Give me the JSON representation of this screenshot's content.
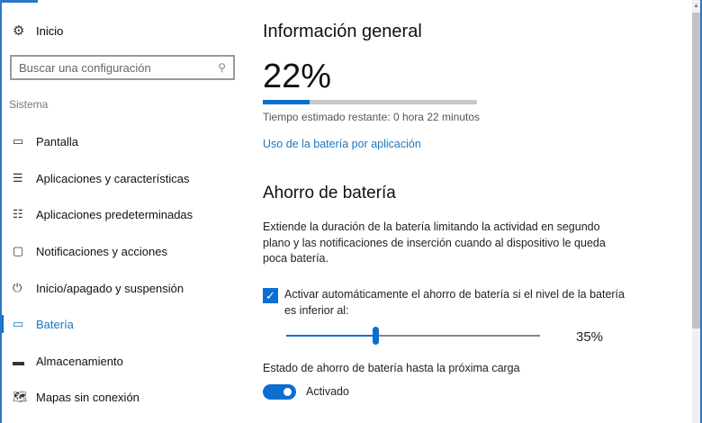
{
  "sidebar": {
    "home": {
      "label": "Inicio",
      "icon": "gear-icon"
    },
    "search": {
      "placeholder": "Buscar una configuración",
      "icon": "search-icon"
    },
    "section": "Sistema",
    "items": [
      {
        "label": "Pantalla",
        "icon": "monitor-icon"
      },
      {
        "label": "Aplicaciones y características",
        "icon": "list-icon"
      },
      {
        "label": "Aplicaciones predeterminadas",
        "icon": "default-apps-icon"
      },
      {
        "label": "Notificaciones y acciones",
        "icon": "notification-icon"
      },
      {
        "label": "Inicio/apagado y suspensión",
        "icon": "power-icon"
      },
      {
        "label": "Batería",
        "icon": "battery-icon",
        "active": true
      },
      {
        "label": "Almacenamiento",
        "icon": "storage-icon"
      },
      {
        "label": "Mapas sin conexión",
        "icon": "map-icon"
      }
    ]
  },
  "main": {
    "overview_title": "Información general",
    "battery_percent": "22%",
    "battery_level": 22,
    "estimate": "Tiempo estimado restante: 0 hora 22 minutos",
    "usage_link": "Uso de la batería por aplicación",
    "saver_title": "Ahorro de batería",
    "saver_desc": "Extiende la duración de la batería limitando la actividad en segundo plano y las notificaciones de inserción cuando al dispositivo le queda poca batería.",
    "auto_checkbox": {
      "label": "Activar automáticamente el ahorro de batería si el nivel de la batería es inferior al:",
      "checked": true
    },
    "threshold": {
      "value": 35,
      "label": "35%"
    },
    "state_label": "Estado de ahorro de batería hasta la próxima carga",
    "toggle": {
      "on": true,
      "label": "Activado"
    }
  },
  "colors": {
    "accent": "#0a6fd0",
    "link": "#1a78c2"
  }
}
